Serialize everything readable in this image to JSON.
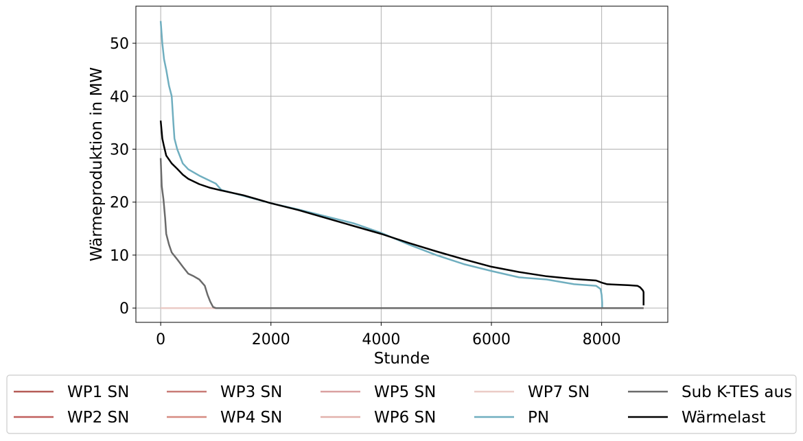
{
  "chart_data": {
    "type": "line",
    "title": "",
    "xlabel": "Stunde",
    "ylabel": "Wärmeproduktion in MW",
    "xlim": [
      -450,
      9200
    ],
    "ylim": [
      -2.7,
      57
    ],
    "xticks": [
      0,
      2000,
      4000,
      6000,
      8000
    ],
    "yticks": [
      0,
      10,
      20,
      30,
      40,
      50
    ],
    "xtick_labels": [
      "0",
      "2000",
      "4000",
      "6000",
      "8000"
    ],
    "ytick_labels": [
      "0",
      "10",
      "20",
      "30",
      "40",
      "50"
    ],
    "grid": true,
    "legend_position": "bottom",
    "series": [
      {
        "name": "WP1 SN",
        "color": "#b55a55",
        "x": [
          0,
          8760
        ],
        "y": [
          0,
          0
        ]
      },
      {
        "name": "WP2 SN",
        "color": "#c05f5c",
        "x": [
          0,
          8760
        ],
        "y": [
          0,
          0
        ]
      },
      {
        "name": "WP3 SN",
        "color": "#c87a75",
        "x": [
          0,
          8760
        ],
        "y": [
          0,
          0
        ]
      },
      {
        "name": "WP4 SN",
        "color": "#d68a80",
        "x": [
          0,
          8760
        ],
        "y": [
          0,
          0
        ]
      },
      {
        "name": "WP5 SN",
        "color": "#d9a0a0",
        "x": [
          0,
          8760
        ],
        "y": [
          0,
          0
        ]
      },
      {
        "name": "WP6 SN",
        "color": "#e2b1ac",
        "x": [
          0,
          8760
        ],
        "y": [
          0,
          0
        ]
      },
      {
        "name": "WP7 SN",
        "color": "#ebcbc6",
        "x": [
          0,
          950
        ],
        "y": [
          0,
          0
        ]
      },
      {
        "name": "PN",
        "color": "#6faebf",
        "x": [
          0,
          30,
          60,
          100,
          150,
          200,
          230,
          250,
          300,
          400,
          500,
          700,
          1000,
          1100,
          1500,
          2000,
          2500,
          3000,
          3500,
          4000,
          4500,
          5000,
          5500,
          6000,
          6500,
          7000,
          7500,
          7900,
          7980,
          8000,
          8010,
          8010
        ],
        "y": [
          54.2,
          50,
          47,
          45,
          42,
          40,
          35,
          32,
          30,
          27.3,
          26.2,
          25,
          23.5,
          22.3,
          21.2,
          19.8,
          18.6,
          17.3,
          16,
          14.2,
          12,
          10,
          8.3,
          7,
          5.8,
          5.4,
          4.5,
          4.2,
          3.6,
          2.5,
          1,
          0
        ]
      },
      {
        "name": "Sub K-TES aus",
        "color": "#6a6a6a",
        "x": [
          0,
          20,
          50,
          80,
          100,
          150,
          200,
          300,
          400,
          500,
          600,
          700,
          800,
          850,
          900,
          950,
          1000,
          2000,
          4000,
          6000,
          8760
        ],
        "y": [
          28.3,
          23,
          20.5,
          17,
          14,
          12,
          10.5,
          9.2,
          7.8,
          6.5,
          6,
          5.4,
          4.2,
          2.5,
          1.2,
          0.2,
          0,
          0,
          0,
          0,
          0
        ]
      },
      {
        "name": "Wärmelast",
        "color": "#000000",
        "x": [
          0,
          30,
          60,
          100,
          200,
          300,
          400,
          500,
          700,
          900,
          1100,
          1500,
          2000,
          2500,
          3000,
          3500,
          4000,
          4500,
          5000,
          5500,
          6000,
          6500,
          7000,
          7500,
          7900,
          8000,
          8100,
          8500,
          8650,
          8700,
          8750,
          8760,
          8760
        ],
        "y": [
          35.4,
          32,
          30.5,
          28.8,
          27.3,
          26.3,
          25.2,
          24.4,
          23.4,
          22.7,
          22.2,
          21.3,
          19.8,
          18.5,
          17,
          15.5,
          14,
          12.3,
          10.7,
          9.2,
          7.8,
          6.8,
          6,
          5.5,
          5.2,
          4.8,
          4.5,
          4.3,
          4.2,
          3.9,
          3.3,
          3,
          0.5
        ]
      }
    ]
  }
}
